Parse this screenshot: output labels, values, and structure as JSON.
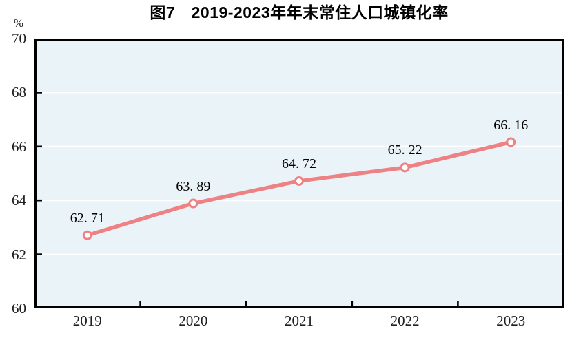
{
  "chart_data": {
    "type": "line",
    "title": "图7　2019-2023年年末常住人口城镇化率",
    "categories": [
      "2019",
      "2020",
      "2021",
      "2022",
      "2023"
    ],
    "values": [
      62.71,
      63.89,
      64.72,
      65.22,
      66.16
    ],
    "value_labels": [
      "62. 71",
      "63. 89",
      "64. 72",
      "65. 22",
      "66. 16"
    ],
    "xlabel": "",
    "ylabel": "%",
    "ylim": [
      60,
      70
    ],
    "yticks": [
      60,
      62,
      64,
      66,
      68,
      70
    ],
    "grid": true,
    "legend": "none",
    "colors": {
      "line": "#EE8183",
      "marker_fill": "#FFFFFF",
      "marker_stroke": "#EE8183",
      "plot_background": "#EAF3F7",
      "gridline": "#FFFFFF",
      "axis": "#000000",
      "tick_text": "#1F1F1F",
      "label_text": "#000000",
      "page_background": "#FFFFFF"
    }
  }
}
